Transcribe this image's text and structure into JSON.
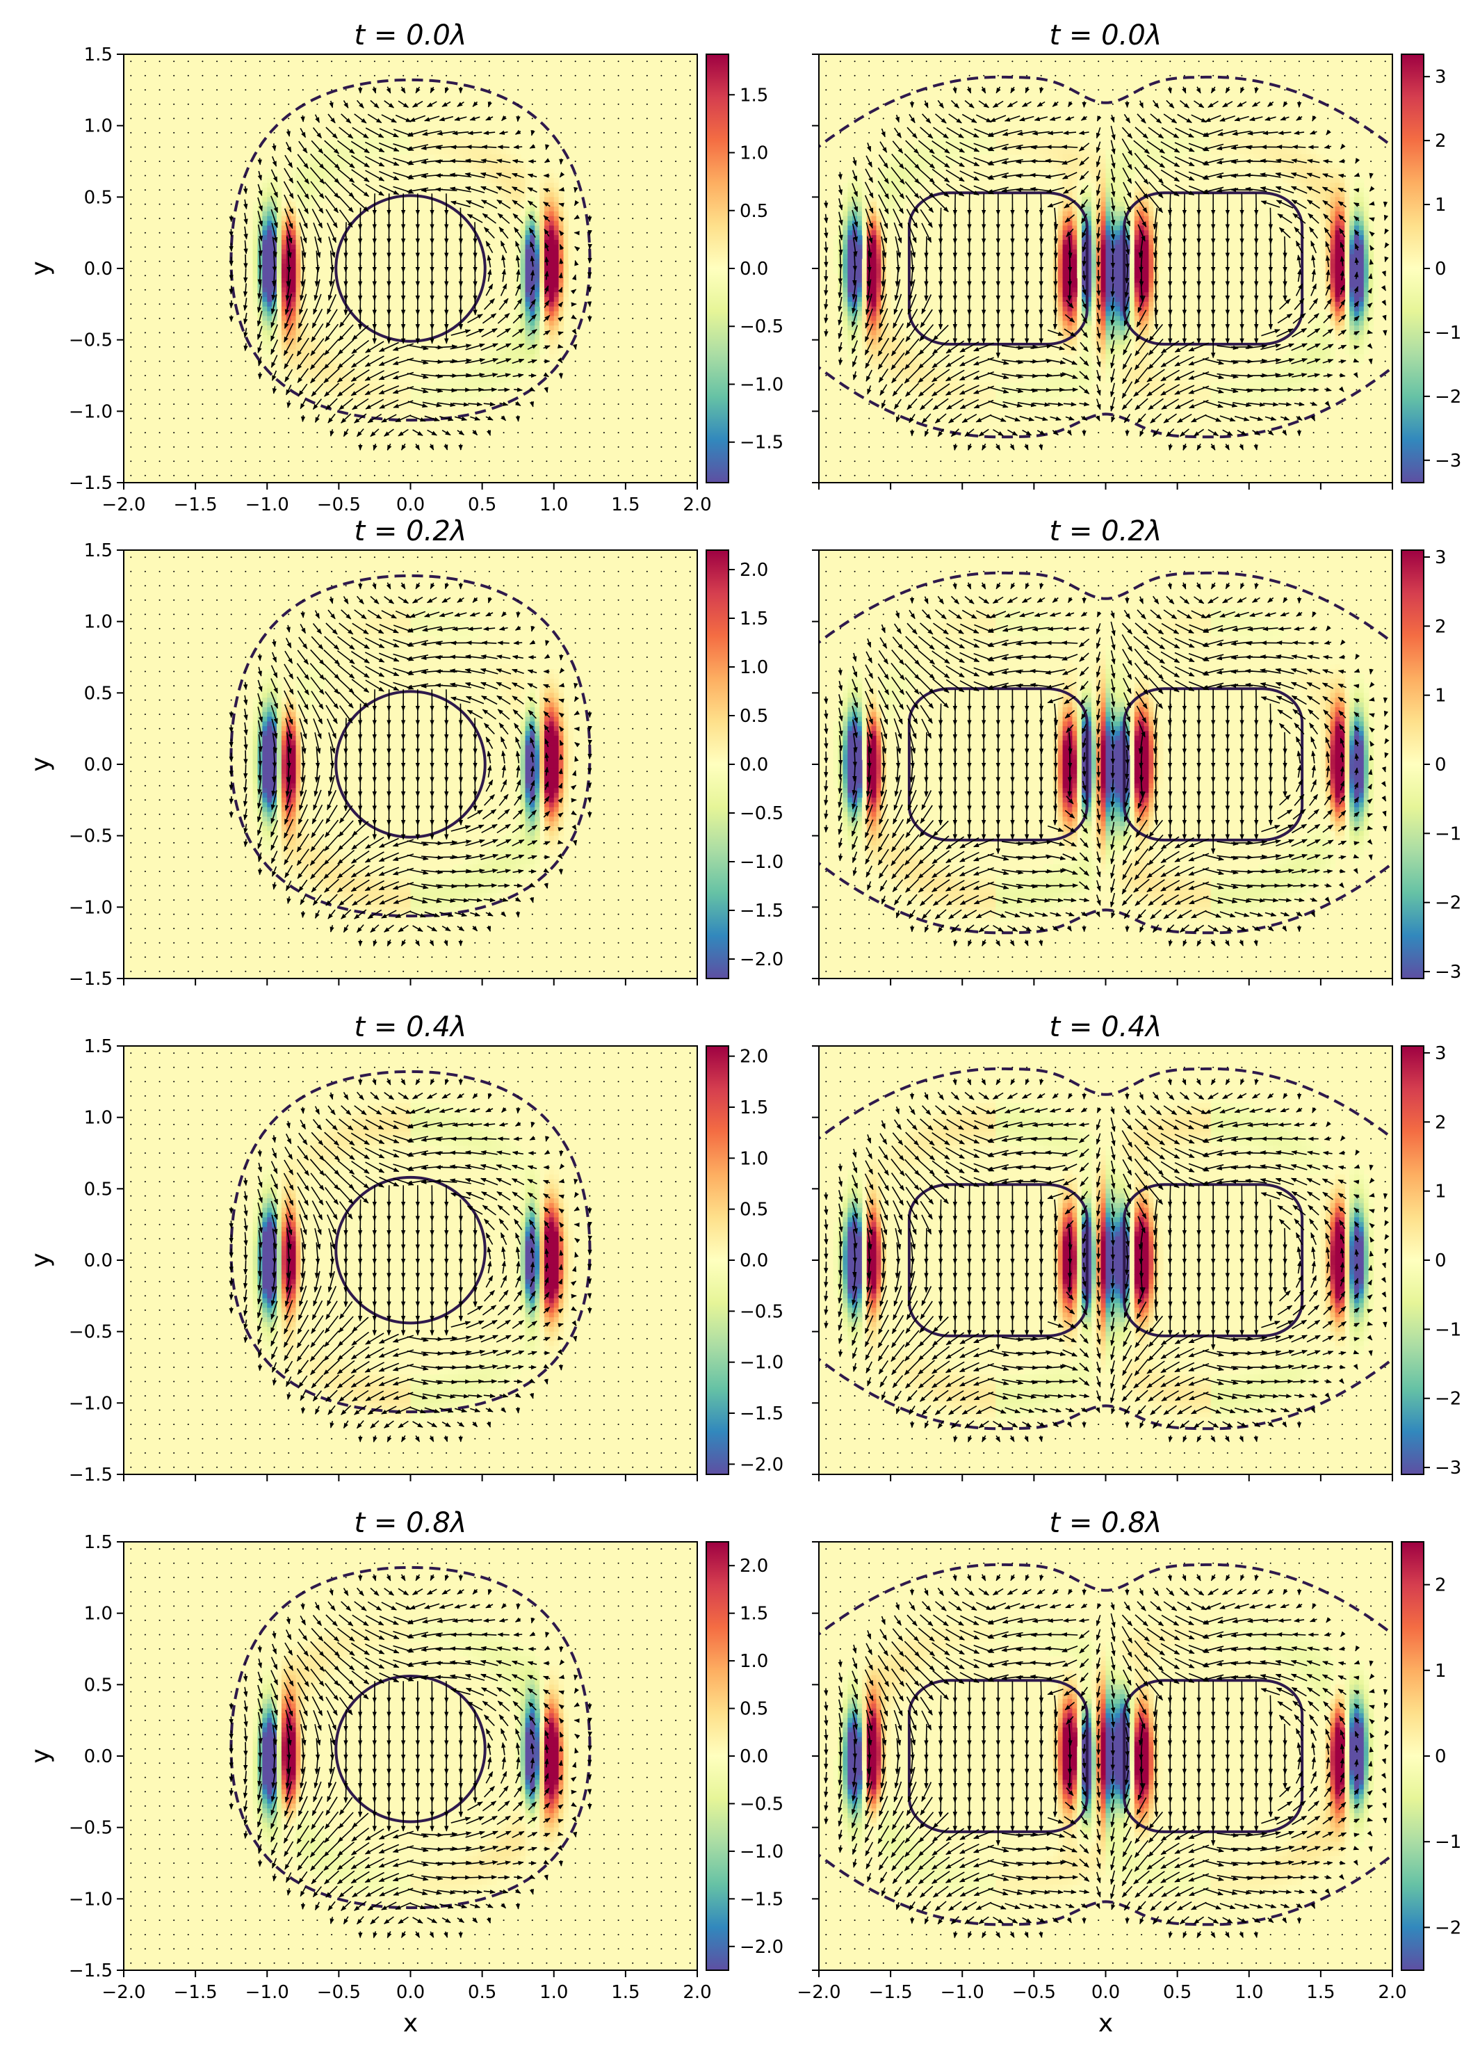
{
  "chart_data": {
    "type": "heatmap",
    "description_axes": {
      "xlabel": "x",
      "ylabel": "y"
    },
    "colormap": "Spectral_r",
    "colors": {
      "background": "#fefab8",
      "contour": "#2f1a4c",
      "arrow": "#000000",
      "colorbar_stops": [
        "#5e4fa2",
        "#3288bd",
        "#66c2a5",
        "#abdda4",
        "#e6f598",
        "#ffffbf",
        "#fee08b",
        "#fdae61",
        "#f46d43",
        "#d53e4f",
        "#9e0142"
      ]
    },
    "panels": [
      {
        "id": "r0c0",
        "title": "t = 0.0λ",
        "t": 0.0,
        "config": "single",
        "xlim": [
          -2,
          2
        ],
        "ylim": [
          -1.5,
          1.5
        ],
        "xticks": [
          "−2.0",
          "−1.5",
          "−1.0",
          "−0.5",
          "0.0",
          "0.5",
          "1.0",
          "1.5",
          "2.0"
        ],
        "yticks": [
          "1.5",
          "1.0",
          "0.5",
          "0.0",
          "−0.5",
          "−1.0",
          "−1.5"
        ],
        "ylabel": "y",
        "xlabel": "",
        "colorbar": {
          "range": [
            -1.85,
            1.85
          ],
          "ticks": [
            1.5,
            1.0,
            0.5,
            0.0,
            -0.5,
            -1.0,
            -1.5
          ],
          "tick_labels": [
            "1.5",
            "1.0",
            "0.5",
            "0.0",
            "−0.5",
            "−1.0",
            "−1.5"
          ]
        }
      },
      {
        "id": "r0c1",
        "title": "t = 0.0λ",
        "t": 0.0,
        "config": "pair",
        "xlim": [
          -2,
          2
        ],
        "ylim": [
          -1.5,
          1.5
        ],
        "xticks": [],
        "yticks": [],
        "ylabel": "",
        "xlabel": "",
        "colorbar": {
          "range": [
            -3.35,
            3.35
          ],
          "ticks": [
            3,
            2,
            1,
            0,
            -1,
            -2,
            -3
          ],
          "tick_labels": [
            "3",
            "2",
            "1",
            "0",
            "−1",
            "−2",
            "−3"
          ]
        }
      },
      {
        "id": "r1c0",
        "title": "t = 0.2λ",
        "t": 0.2,
        "config": "single",
        "xlim": [
          -2,
          2
        ],
        "ylim": [
          -1.5,
          1.5
        ],
        "xticks": [],
        "yticks": [
          "1.5",
          "1.0",
          "0.5",
          "0.0",
          "−0.5",
          "−1.0",
          "−1.5"
        ],
        "ylabel": "y",
        "xlabel": "",
        "colorbar": {
          "range": [
            -2.2,
            2.2
          ],
          "ticks": [
            2.0,
            1.5,
            1.0,
            0.5,
            0.0,
            -0.5,
            -1.0,
            -1.5,
            -2.0
          ],
          "tick_labels": [
            "2.0",
            "1.5",
            "1.0",
            "0.5",
            "0.0",
            "−0.5",
            "−1.0",
            "−1.5",
            "−2.0"
          ]
        }
      },
      {
        "id": "r1c1",
        "title": "t = 0.2λ",
        "t": 0.2,
        "config": "pair",
        "xlim": [
          -2,
          2
        ],
        "ylim": [
          -1.5,
          1.5
        ],
        "xticks": [],
        "yticks": [],
        "ylabel": "",
        "xlabel": "",
        "colorbar": {
          "range": [
            -3.1,
            3.1
          ],
          "ticks": [
            3,
            2,
            1,
            0,
            -1,
            -2,
            -3
          ],
          "tick_labels": [
            "3",
            "2",
            "1",
            "0",
            "−1",
            "−2",
            "−3"
          ]
        }
      },
      {
        "id": "r2c0",
        "title": "t = 0.4λ",
        "t": 0.4,
        "config": "single",
        "xlim": [
          -2,
          2
        ],
        "ylim": [
          -1.5,
          1.5
        ],
        "xticks": [],
        "yticks": [
          "1.5",
          "1.0",
          "0.5",
          "0.0",
          "−0.5",
          "−1.0",
          "−1.5"
        ],
        "ylabel": "y",
        "xlabel": "",
        "colorbar": {
          "range": [
            -2.1,
            2.1
          ],
          "ticks": [
            2.0,
            1.5,
            1.0,
            0.5,
            0.0,
            -0.5,
            -1.0,
            -1.5,
            -2.0
          ],
          "tick_labels": [
            "2.0",
            "1.5",
            "1.0",
            "0.5",
            "0.0",
            "−0.5",
            "−1.0",
            "−1.5",
            "−2.0"
          ]
        }
      },
      {
        "id": "r2c1",
        "title": "t = 0.4λ",
        "t": 0.4,
        "config": "pair",
        "xlim": [
          -2,
          2
        ],
        "ylim": [
          -1.5,
          1.5
        ],
        "xticks": [],
        "yticks": [],
        "ylabel": "",
        "xlabel": "",
        "colorbar": {
          "range": [
            -3.1,
            3.1
          ],
          "ticks": [
            3,
            2,
            1,
            0,
            -1,
            -2,
            -3
          ],
          "tick_labels": [
            "3",
            "2",
            "1",
            "0",
            "−1",
            "−2",
            "−3"
          ]
        }
      },
      {
        "id": "r3c0",
        "title": "t = 0.8λ",
        "t": 0.8,
        "config": "single",
        "xlim": [
          -2,
          2
        ],
        "ylim": [
          -1.5,
          1.5
        ],
        "xticks": [
          "−2.0",
          "−1.5",
          "−1.0",
          "−0.5",
          "0.0",
          "0.5",
          "1.0",
          "1.5",
          "2.0"
        ],
        "yticks": [
          "1.5",
          "1.0",
          "0.5",
          "0.0",
          "−0.5",
          "−1.0",
          "−1.5"
        ],
        "ylabel": "y",
        "xlabel": "x",
        "colorbar": {
          "range": [
            -2.25,
            2.25
          ],
          "ticks": [
            2.0,
            1.5,
            1.0,
            0.5,
            0.0,
            -0.5,
            -1.0,
            -1.5,
            -2.0
          ],
          "tick_labels": [
            "2.0",
            "1.5",
            "1.0",
            "0.5",
            "0.0",
            "−0.5",
            "−1.0",
            "−1.5",
            "−2.0"
          ]
        }
      },
      {
        "id": "r3c1",
        "title": "t = 0.8λ",
        "t": 0.8,
        "config": "pair",
        "xlim": [
          -2,
          2
        ],
        "ylim": [
          -1.5,
          1.5
        ],
        "xticks": [
          "−2.0",
          "−1.5",
          "−1.0",
          "−0.5",
          "0.0",
          "0.5",
          "1.0",
          "1.5",
          "2.0"
        ],
        "yticks": [],
        "ylabel": "",
        "xlabel": "x",
        "colorbar": {
          "range": [
            -2.5,
            2.5
          ],
          "ticks": [
            2,
            1,
            0,
            -1,
            -2
          ],
          "tick_labels": [
            "2",
            "1",
            "0",
            "−1",
            "−2"
          ]
        }
      }
    ]
  }
}
